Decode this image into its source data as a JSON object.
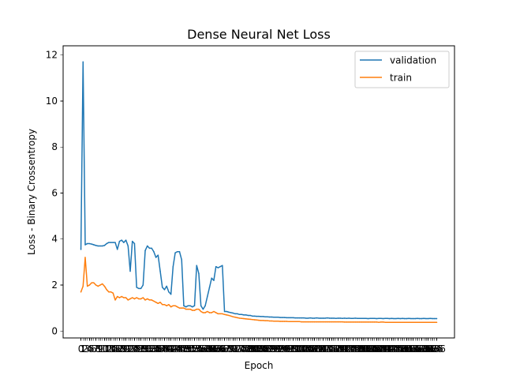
{
  "chart_data": {
    "type": "line",
    "title": "Dense Neural Net Loss",
    "xlabel": "Epoch",
    "ylabel": "Loss - Binary Crossentropy",
    "xlim": [
      -8.3,
      174.3
    ],
    "ylim": [
      -0.3,
      12.4
    ],
    "yticks": [
      0,
      2,
      4,
      6,
      8,
      10,
      12
    ],
    "grid": false,
    "legend_position": "upper right",
    "x": [
      0,
      1,
      2,
      3,
      4,
      5,
      6,
      7,
      8,
      9,
      10,
      11,
      12,
      13,
      14,
      15,
      16,
      17,
      18,
      19,
      20,
      21,
      22,
      23,
      24,
      25,
      26,
      27,
      28,
      29,
      30,
      31,
      32,
      33,
      34,
      35,
      36,
      37,
      38,
      39,
      40,
      41,
      42,
      43,
      44,
      45,
      46,
      47,
      48,
      49,
      50,
      51,
      52,
      53,
      54,
      55,
      56,
      57,
      58,
      59,
      60,
      61,
      62,
      63,
      64,
      65,
      66,
      67,
      68,
      69,
      70,
      71,
      72,
      73,
      74,
      75,
      76,
      77,
      78,
      79,
      80,
      81,
      82,
      83,
      84,
      85,
      86,
      87,
      88,
      89,
      90,
      91,
      92,
      93,
      94,
      95,
      96,
      97,
      98,
      99,
      100,
      101,
      102,
      103,
      104,
      105,
      106,
      107,
      108,
      109,
      110,
      111,
      112,
      113,
      114,
      115,
      116,
      117,
      118,
      119,
      120,
      121,
      122,
      123,
      124,
      125,
      126,
      127,
      128,
      129,
      130,
      131,
      132,
      133,
      134,
      135,
      136,
      137,
      138,
      139,
      140,
      141,
      142,
      143,
      144,
      145,
      146,
      147,
      148,
      149,
      150,
      151,
      152,
      153,
      154,
      155,
      156,
      157,
      158,
      159,
      160,
      161,
      162,
      163,
      164,
      165,
      166
    ],
    "series": [
      {
        "name": "validation",
        "color": "#1f77b4",
        "values": [
          3.55,
          11.7,
          3.75,
          3.8,
          3.8,
          3.78,
          3.75,
          3.72,
          3.7,
          3.7,
          3.7,
          3.72,
          3.8,
          3.85,
          3.85,
          3.85,
          3.85,
          3.55,
          3.9,
          3.95,
          3.85,
          3.95,
          3.7,
          2.6,
          3.9,
          3.8,
          1.9,
          1.85,
          1.85,
          2.0,
          3.5,
          3.7,
          3.6,
          3.6,
          3.45,
          3.2,
          3.3,
          2.6,
          1.9,
          1.8,
          1.95,
          1.7,
          1.6,
          2.8,
          3.4,
          3.45,
          3.45,
          3.1,
          1.1,
          1.05,
          1.1,
          1.1,
          1.05,
          1.1,
          2.85,
          2.5,
          1.1,
          0.95,
          1.1,
          1.5,
          1.9,
          2.3,
          2.2,
          2.8,
          2.75,
          2.8,
          2.85,
          0.85,
          0.85,
          0.82,
          0.8,
          0.78,
          0.75,
          0.75,
          0.72,
          0.72,
          0.7,
          0.7,
          0.68,
          0.68,
          0.65,
          0.65,
          0.64,
          0.64,
          0.63,
          0.63,
          0.62,
          0.62,
          0.61,
          0.61,
          0.6,
          0.6,
          0.6,
          0.59,
          0.59,
          0.59,
          0.58,
          0.58,
          0.58,
          0.58,
          0.57,
          0.57,
          0.57,
          0.57,
          0.57,
          0.56,
          0.56,
          0.57,
          0.56,
          0.56,
          0.57,
          0.56,
          0.56,
          0.56,
          0.56,
          0.57,
          0.56,
          0.56,
          0.56,
          0.55,
          0.56,
          0.56,
          0.55,
          0.56,
          0.55,
          0.56,
          0.55,
          0.55,
          0.56,
          0.55,
          0.55,
          0.55,
          0.55,
          0.55,
          0.54,
          0.55,
          0.55,
          0.55,
          0.54,
          0.55,
          0.55,
          0.54,
          0.55,
          0.55,
          0.54,
          0.55,
          0.54,
          0.54,
          0.55,
          0.54,
          0.55,
          0.54,
          0.54,
          0.55,
          0.54,
          0.54,
          0.54,
          0.55,
          0.54,
          0.54,
          0.55,
          0.54,
          0.54,
          0.55,
          0.54,
          0.54,
          0.54
        ]
      },
      {
        "name": "train",
        "color": "#ff7f0e",
        "values": [
          1.7,
          1.95,
          3.2,
          1.95,
          2.0,
          2.1,
          2.1,
          2.0,
          1.95,
          2.0,
          2.05,
          1.95,
          1.8,
          1.7,
          1.7,
          1.65,
          1.35,
          1.5,
          1.45,
          1.5,
          1.45,
          1.45,
          1.35,
          1.4,
          1.45,
          1.4,
          1.45,
          1.4,
          1.4,
          1.45,
          1.35,
          1.4,
          1.35,
          1.35,
          1.3,
          1.25,
          1.2,
          1.25,
          1.15,
          1.15,
          1.1,
          1.15,
          1.05,
          1.1,
          1.1,
          1.05,
          1.0,
          1.0,
          1.0,
          0.95,
          0.95,
          0.95,
          0.9,
          0.9,
          0.95,
          0.95,
          0.85,
          0.8,
          0.8,
          0.85,
          0.8,
          0.8,
          0.85,
          0.8,
          0.75,
          0.75,
          0.75,
          0.72,
          0.7,
          0.68,
          0.65,
          0.62,
          0.6,
          0.58,
          0.56,
          0.55,
          0.54,
          0.53,
          0.52,
          0.51,
          0.5,
          0.49,
          0.48,
          0.47,
          0.46,
          0.46,
          0.45,
          0.45,
          0.44,
          0.44,
          0.43,
          0.43,
          0.43,
          0.42,
          0.42,
          0.42,
          0.42,
          0.41,
          0.41,
          0.41,
          0.41,
          0.41,
          0.41,
          0.4,
          0.4,
          0.4,
          0.4,
          0.4,
          0.4,
          0.4,
          0.4,
          0.4,
          0.4,
          0.4,
          0.4,
          0.4,
          0.4,
          0.4,
          0.4,
          0.4,
          0.4,
          0.4,
          0.4,
          0.39,
          0.39,
          0.39,
          0.39,
          0.39,
          0.39,
          0.39,
          0.39,
          0.39,
          0.39,
          0.39,
          0.39,
          0.39,
          0.39,
          0.39,
          0.39,
          0.38,
          0.39,
          0.39,
          0.38,
          0.38,
          0.38,
          0.38,
          0.38,
          0.38,
          0.38,
          0.38,
          0.38,
          0.38,
          0.38,
          0.38,
          0.38,
          0.38,
          0.38,
          0.38,
          0.38,
          0.38,
          0.38,
          0.38,
          0.38,
          0.38,
          0.38,
          0.38,
          0.38
        ]
      }
    ]
  }
}
